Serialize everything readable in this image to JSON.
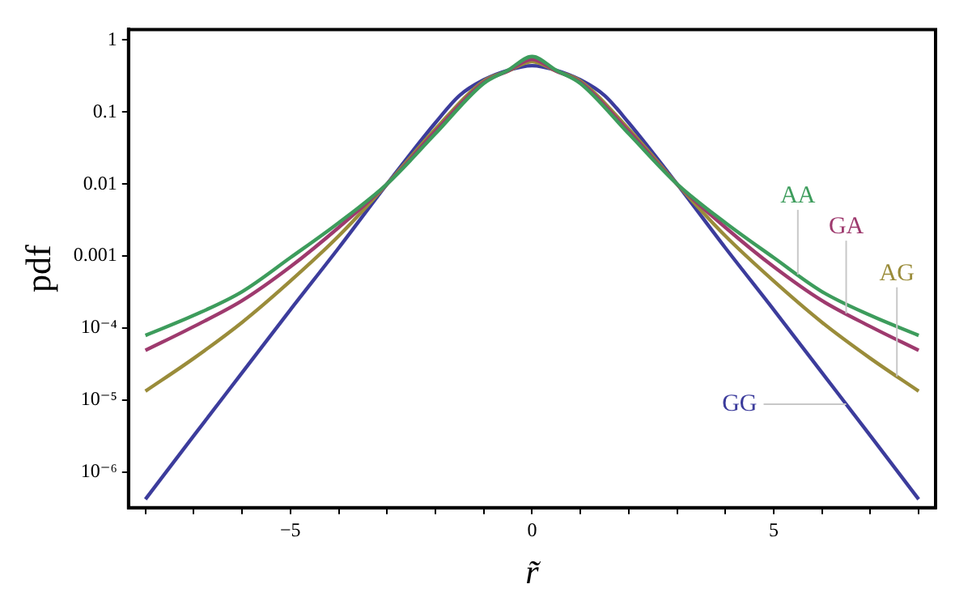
{
  "chart_data": {
    "type": "line",
    "xlabel": "r̃",
    "ylabel": "pdf",
    "log": "y",
    "grid": false,
    "legend": false,
    "marker": "none",
    "line_style": "solid",
    "xlim": [
      -8.35,
      8.35
    ],
    "ylim": [
      3.2e-07,
      1.4
    ],
    "xticks": [
      {
        "value": -8,
        "label": null
      },
      {
        "value": -7,
        "label": null
      },
      {
        "value": -6,
        "label": null
      },
      {
        "value": -5,
        "label": "−5"
      },
      {
        "value": -4,
        "label": null
      },
      {
        "value": -3,
        "label": null
      },
      {
        "value": -2,
        "label": null
      },
      {
        "value": -1,
        "label": null
      },
      0,
      {
        "value": 1,
        "label": null
      },
      {
        "value": 2,
        "label": null
      },
      {
        "value": 3,
        "label": null
      },
      {
        "value": 4,
        "label": null
      },
      5,
      {
        "value": 6,
        "label": null
      },
      {
        "value": 7,
        "label": null
      },
      {
        "value": 8,
        "label": null
      }
    ],
    "yticks": [
      {
        "value": 1e-06,
        "label": "10⁻⁶"
      },
      {
        "value": 1e-05,
        "label": "10⁻⁵"
      },
      {
        "value": 0.0001,
        "label": "10⁻⁴"
      },
      0.001,
      0.01,
      0.1,
      1
    ],
    "series": [
      {
        "name": "AA",
        "color": "#3d9c5c",
        "x": [
          -8,
          -7,
          -6,
          -5,
          -4,
          -3,
          -2,
          -1,
          -0.5,
          0,
          0.5,
          1,
          2,
          3,
          4,
          5,
          6,
          7,
          8
        ],
        "values": [
          7.9e-05,
          0.00015,
          0.00032,
          0.00095,
          0.0029,
          0.01,
          0.05,
          0.25,
          0.38,
          0.59,
          0.38,
          0.25,
          0.05,
          0.01,
          0.0029,
          0.00095,
          0.00032,
          0.00015,
          7.9e-05
        ]
      },
      {
        "name": "GA",
        "color": "#9e3a6e",
        "x": [
          -8,
          -7,
          -6,
          -5,
          -4,
          -3,
          -2,
          -1,
          -0.5,
          0,
          0.5,
          1,
          2,
          3,
          4,
          5,
          6,
          7,
          8
        ],
        "values": [
          4.9e-05,
          0.000105,
          0.00024,
          0.00071,
          0.0025,
          0.01,
          0.054,
          0.26,
          0.37,
          0.54,
          0.37,
          0.26,
          0.054,
          0.01,
          0.0025,
          0.00071,
          0.00024,
          0.000105,
          4.9e-05
        ]
      },
      {
        "name": "AG",
        "color": "#9a8c3a",
        "x": [
          -8,
          -7,
          -6,
          -5,
          -4,
          -3,
          -2,
          -1,
          -0.5,
          0,
          0.5,
          1,
          2,
          3,
          4,
          5,
          6,
          7,
          8
        ],
        "values": [
          1.33e-05,
          3.8e-05,
          0.00012,
          0.00045,
          0.0019,
          0.01,
          0.058,
          0.27,
          0.37,
          0.5,
          0.37,
          0.27,
          0.058,
          0.01,
          0.0019,
          0.00045,
          0.00012,
          3.8e-05,
          1.33e-05
        ]
      },
      {
        "name": "GG",
        "color": "#3c3c9c",
        "x": [
          -8,
          -7,
          -6,
          -5,
          -4,
          -3,
          -2,
          -1.5,
          -1,
          -0.5,
          0,
          0.5,
          1,
          1.5,
          2,
          3,
          4,
          5,
          6,
          7,
          8
        ],
        "values": [
          4.2e-07,
          3.2e-06,
          2.4e-05,
          0.00018,
          0.0013,
          0.01,
          0.071,
          0.17,
          0.28,
          0.38,
          0.44,
          0.38,
          0.28,
          0.17,
          0.071,
          0.01,
          0.0013,
          0.00018,
          2.4e-05,
          3.2e-06,
          4.2e-07
        ]
      }
    ]
  }
}
